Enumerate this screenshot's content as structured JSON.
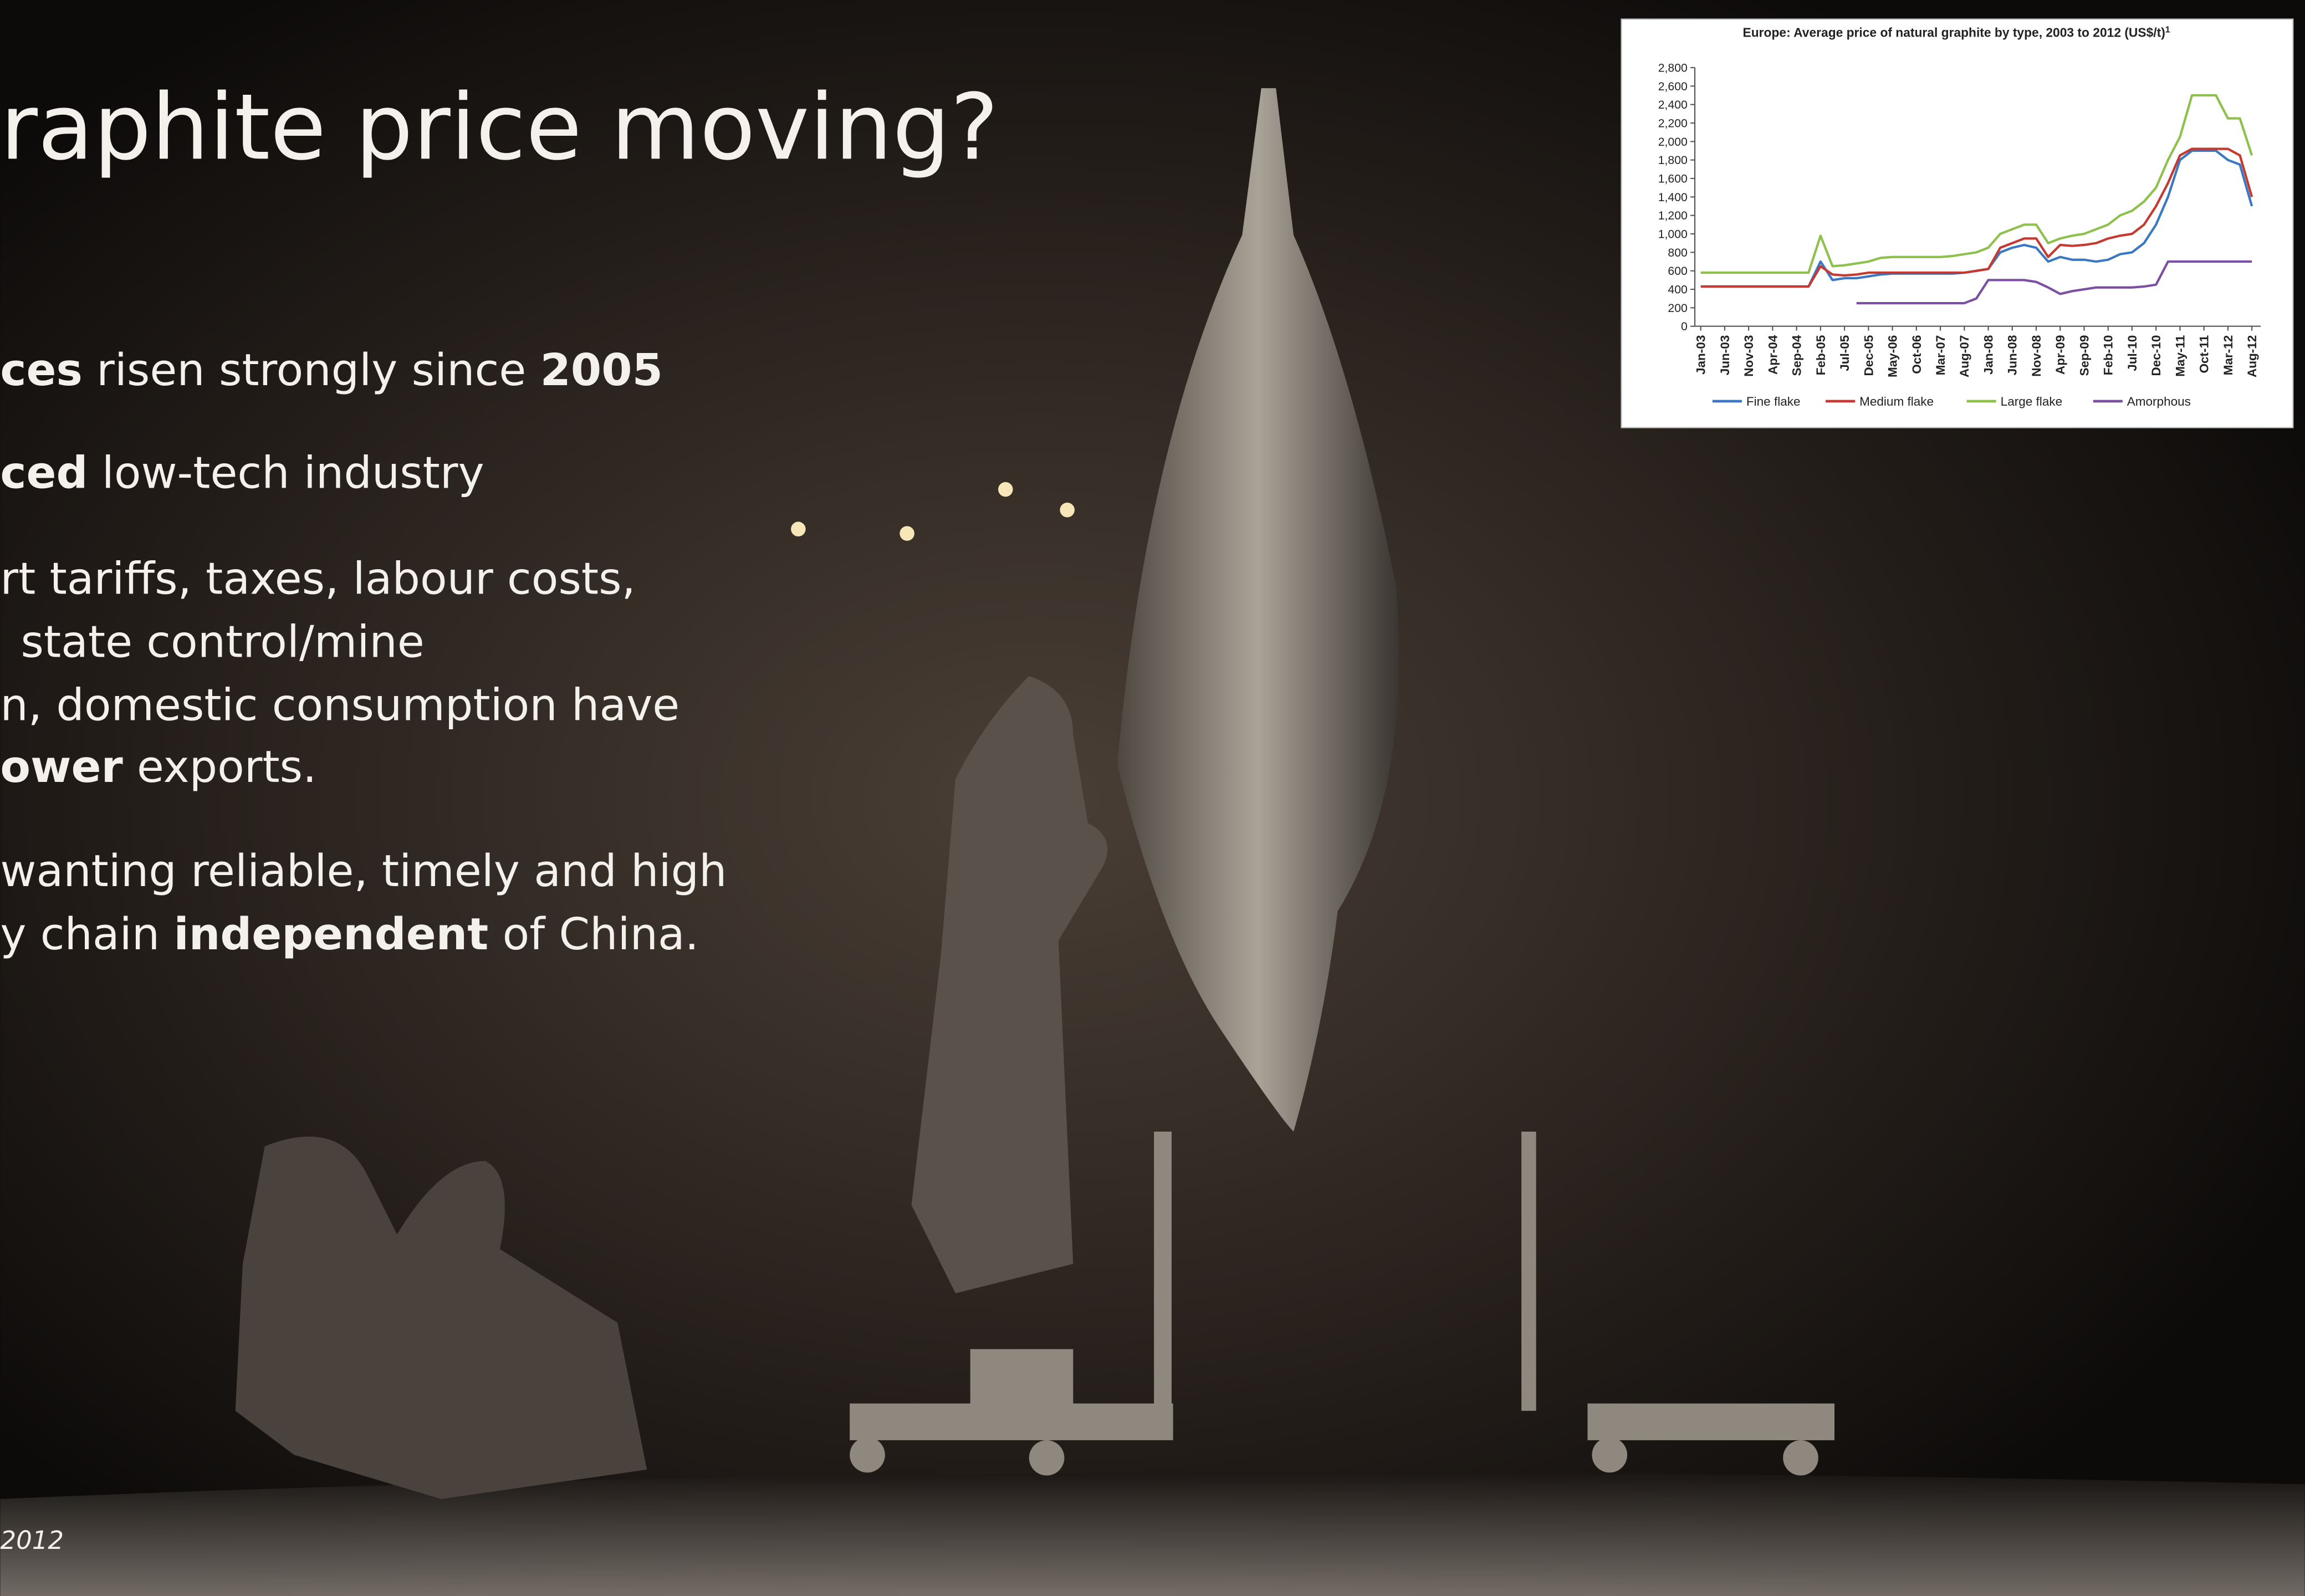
{
  "slide": {
    "title": "raphite price moving?",
    "bullets": [
      [
        {
          "text": "ces",
          "bold": true
        },
        {
          "text": " risen strongly since ",
          "bold": false
        },
        {
          "text": "2005",
          "bold": true
        }
      ],
      [
        {
          "text": "ced",
          "bold": true
        },
        {
          "text": " low-tech industry",
          "bold": false
        }
      ],
      [
        {
          "text": "rt tariffs, taxes, labour costs,",
          "bold": false
        }
      ],
      [
        {
          "text": " state control/mine",
          "bold": false
        }
      ],
      [
        {
          "text": "n, domestic consumption have",
          "bold": false
        }
      ],
      [
        {
          "text": "ower",
          "bold": true
        },
        {
          "text": " exports.",
          "bold": false
        }
      ],
      [
        {
          "text": "wanting reliable, timely and high",
          "bold": false
        }
      ],
      [
        {
          "text": "y chain ",
          "bold": false
        },
        {
          "text": "independent",
          "bold": true
        },
        {
          "text": " of  China.",
          "bold": false
        }
      ]
    ],
    "footer": "2012"
  },
  "chart_data": {
    "type": "line",
    "title": "Europe: Average price of natural graphite by type, 2003 to 2012 (US$/t)",
    "title_note": "1",
    "categories": [
      "Jan-03",
      null,
      "Jun-03",
      null,
      "Nov-03",
      null,
      "Apr-04",
      null,
      "Sep-04",
      null,
      "Feb-05",
      null,
      "Jul-05",
      null,
      "Dec-05",
      null,
      "May-06",
      null,
      "Oct-06",
      null,
      "Mar-07",
      null,
      "Aug-07",
      null,
      "Jan-08",
      null,
      "Jun-08",
      null,
      "Nov-08",
      null,
      "Apr-09",
      null,
      "Sep-09",
      null,
      "Feb-10",
      null,
      "Jul-10",
      null,
      "Dec-10",
      null,
      "May-11",
      null,
      "Oct-11",
      null,
      "Mar-12",
      null,
      "Aug-12"
    ],
    "ylim": [
      0,
      2800
    ],
    "yticks": [
      0,
      200,
      400,
      600,
      800,
      {
        "value": 1000,
        "label": "1,000"
      },
      {
        "value": 1200,
        "label": "1,200"
      },
      {
        "value": 1400,
        "label": "1,400"
      },
      {
        "value": 1600,
        "label": "1,600"
      },
      {
        "value": 1800,
        "label": "1,800"
      },
      {
        "value": 2000,
        "label": "2,000"
      },
      {
        "value": 2200,
        "label": "2,200"
      },
      {
        "value": 2400,
        "label": "2,400"
      },
      {
        "value": 2600,
        "label": "2,600"
      },
      {
        "value": 2800,
        "label": "2,800"
      }
    ],
    "grid": false,
    "legend": "bottom",
    "series": [
      {
        "name": "Fine flake",
        "color": "#3b78c3",
        "values": [
          430,
          430,
          430,
          430,
          430,
          430,
          430,
          430,
          430,
          430,
          700,
          500,
          520,
          520,
          540,
          560,
          570,
          570,
          570,
          570,
          570,
          570,
          580,
          600,
          620,
          800,
          850,
          880,
          850,
          700,
          750,
          720,
          720,
          700,
          720,
          780,
          800,
          900,
          1100,
          1400,
          1800,
          1900,
          1900,
          1900,
          1800,
          1750,
          1300
        ]
      },
      {
        "name": "Medium flake",
        "color": "#c43a30",
        "values": [
          430,
          430,
          430,
          430,
          430,
          430,
          430,
          430,
          430,
          430,
          650,
          560,
          550,
          560,
          580,
          580,
          580,
          580,
          580,
          580,
          580,
          580,
          580,
          600,
          620,
          850,
          900,
          950,
          950,
          750,
          880,
          870,
          880,
          900,
          950,
          980,
          1000,
          1100,
          1300,
          1550,
          1850,
          1920,
          1920,
          1920,
          1920,
          1850,
          1400
        ]
      },
      {
        "name": "Large flake",
        "color": "#8dc04d",
        "values": [
          580,
          580,
          580,
          580,
          580,
          580,
          580,
          580,
          580,
          580,
          980,
          650,
          660,
          680,
          700,
          740,
          750,
          750,
          750,
          750,
          750,
          760,
          780,
          800,
          850,
          1000,
          1050,
          1100,
          1100,
          900,
          950,
          980,
          1000,
          1050,
          1100,
          1200,
          1250,
          1350,
          1500,
          1800,
          2050,
          2500,
          2500,
          2500,
          2250,
          2250,
          1850
        ]
      },
      {
        "name": "Amorphous",
        "color": "#7b50a2",
        "values": [
          null,
          null,
          null,
          null,
          null,
          null,
          null,
          null,
          null,
          null,
          null,
          null,
          null,
          250,
          250,
          250,
          250,
          250,
          250,
          250,
          250,
          250,
          250,
          300,
          500,
          500,
          500,
          500,
          480,
          420,
          350,
          380,
          400,
          420,
          420,
          420,
          420,
          430,
          450,
          700,
          700,
          700,
          700,
          700,
          700,
          700,
          700
        ]
      }
    ]
  }
}
